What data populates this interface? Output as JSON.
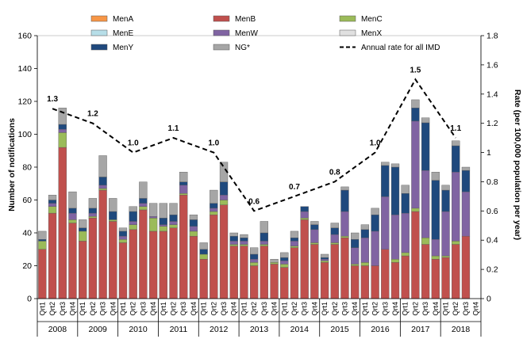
{
  "chart_data": {
    "type": "bar",
    "stacked": true,
    "ylabel": "Number of notifications",
    "y2label": "Rate (per 100,000 population per year)",
    "ylim": [
      0,
      160
    ],
    "yticks": [
      0,
      20,
      40,
      60,
      80,
      100,
      120,
      140,
      160
    ],
    "y2lim": [
      0,
      1.8
    ],
    "y2ticks": [
      "0",
      "0.2",
      "0.4",
      "0.6",
      "0.8",
      "1",
      "1.2",
      "1.4",
      "1.6",
      "1.8"
    ],
    "years": [
      "2008",
      "2009",
      "2010",
      "2011",
      "2012",
      "2013",
      "2014",
      "2015",
      "2016",
      "2017",
      "2018"
    ],
    "quarters": [
      "Qrt1",
      "Qrt2",
      "Qrt3",
      "Qrt4"
    ],
    "legend_position": "top",
    "series": [
      {
        "name": "MenA",
        "color": "#f79646",
        "values": [
          0,
          0,
          0,
          0,
          0,
          0,
          0,
          0,
          0,
          0,
          0,
          0,
          0,
          0,
          0,
          0,
          0,
          0,
          0,
          0,
          0,
          0,
          0,
          0,
          0,
          0,
          0,
          0,
          0,
          0,
          0,
          0,
          0,
          0,
          0,
          0,
          0,
          0,
          0,
          0,
          0,
          0,
          0,
          0
        ]
      },
      {
        "name": "MenB",
        "color": "#c0504d",
        "values": [
          30,
          52,
          92,
          46,
          35,
          49,
          66,
          47,
          34,
          42,
          54,
          41,
          41,
          43,
          63,
          38,
          24,
          51,
          57,
          32,
          32,
          20,
          32,
          21,
          19,
          31,
          48,
          33,
          22,
          33,
          37,
          20,
          20,
          20,
          30,
          22,
          26,
          53,
          33,
          24,
          25,
          33,
          38,
          0
        ]
      },
      {
        "name": "MenC",
        "color": "#9bbb59",
        "values": [
          5,
          4,
          9,
          2,
          6,
          1,
          1,
          1,
          2,
          3,
          2,
          8,
          3,
          2,
          1,
          3,
          3,
          2,
          3,
          1,
          1,
          2,
          1,
          1,
          2,
          1,
          1,
          1,
          1,
          1,
          1,
          1,
          2,
          0,
          0,
          2,
          2,
          2,
          4,
          2,
          1,
          2,
          0,
          0
        ]
      },
      {
        "name": "MenE",
        "color": "#b7dee8",
        "values": [
          0,
          0,
          0,
          0,
          0,
          0,
          0,
          0,
          0,
          0,
          0,
          0,
          0,
          0,
          0,
          0,
          0,
          0,
          0,
          0,
          0,
          0,
          0,
          0,
          0,
          0,
          0,
          0,
          0,
          0,
          0,
          0,
          0,
          0,
          0,
          0,
          0,
          0,
          0,
          0,
          0,
          0,
          0,
          0
        ]
      },
      {
        "name": "MenW",
        "color": "#8064a2",
        "values": [
          0,
          2,
          2,
          4,
          0,
          2,
          2,
          0,
          2,
          2,
          2,
          1,
          1,
          2,
          5,
          3,
          0,
          2,
          3,
          2,
          2,
          2,
          2,
          0,
          2,
          3,
          4,
          8,
          1,
          5,
          15,
          10,
          15,
          21,
          32,
          27,
          24,
          53,
          41,
          10,
          27,
          42,
          27,
          0
        ]
      },
      {
        "name": "MenX",
        "color": "#e0e0e0",
        "values": [
          0,
          0,
          0,
          0,
          0,
          0,
          0,
          0,
          0,
          0,
          0,
          0,
          0,
          0,
          0,
          0,
          0,
          0,
          0,
          0,
          0,
          0,
          0,
          0,
          0,
          0,
          0,
          0,
          0,
          0,
          0,
          0,
          0,
          0,
          0,
          0,
          0,
          0,
          0,
          0,
          0,
          0,
          0,
          0
        ]
      },
      {
        "name": "MenY",
        "color": "#1f497d",
        "values": [
          1,
          2,
          3,
          3,
          2,
          3,
          5,
          5,
          3,
          6,
          3,
          0,
          4,
          4,
          2,
          4,
          3,
          3,
          8,
          3,
          2,
          3,
          5,
          0,
          2,
          2,
          3,
          3,
          1,
          4,
          13,
          5,
          5,
          10,
          19,
          29,
          12,
          8,
          29,
          36,
          13,
          16,
          13,
          0
        ]
      },
      {
        "name": "NG*",
        "color": "#a6a6a6",
        "values": [
          5,
          3,
          10,
          10,
          5,
          6,
          13,
          8,
          2,
          3,
          10,
          8,
          9,
          7,
          6,
          3,
          4,
          8,
          12,
          2,
          2,
          4,
          7,
          2,
          3,
          4,
          0,
          2,
          2,
          3,
          2,
          4,
          3,
          4,
          2,
          2,
          5,
          5,
          3,
          5,
          3,
          3,
          2,
          0
        ]
      }
    ],
    "line_series": {
      "name": "Annual rate for all IMD",
      "style": "dashed",
      "x_position": "Qrt2 of each year",
      "values": [
        1.3,
        1.2,
        1.0,
        1.1,
        1.0,
        0.6,
        0.7,
        0.8,
        1.0,
        1.5,
        1.1
      ],
      "labels": [
        "1.3",
        "1.2",
        "1.0",
        "1.1",
        "1.0",
        "0.6",
        "0.7",
        "0.8",
        "1.0",
        "1.5",
        "1.1"
      ]
    }
  }
}
